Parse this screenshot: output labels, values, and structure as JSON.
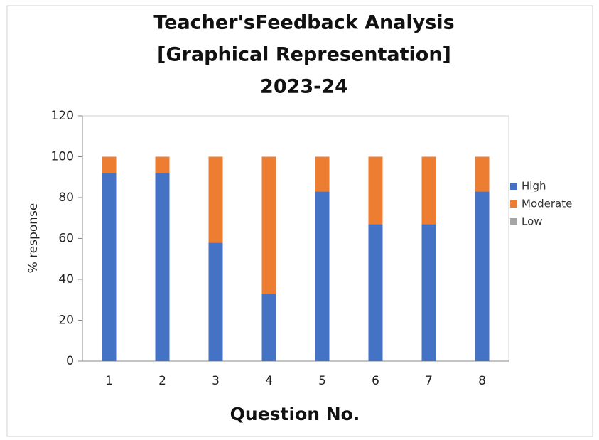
{
  "chart_data": {
    "type": "stacked_bar",
    "title": [
      "Teacher'sFeedback Analysis",
      "[Graphical Representation]",
      "2023-24"
    ],
    "x_label": "Question No.",
    "y_label": "% response",
    "categories": [
      "1",
      "2",
      "3",
      "4",
      "5",
      "6",
      "7",
      "8"
    ],
    "series": [
      {
        "name": "High",
        "color": "#4472c4",
        "values": [
          92,
          92,
          58,
          33,
          83,
          67,
          67,
          83
        ]
      },
      {
        "name": "Moderate",
        "color": "#ed7d31",
        "values": [
          8,
          8,
          42,
          67,
          17,
          33,
          33,
          17
        ]
      },
      {
        "name": "Low",
        "color": "#a5a5a5",
        "values": [
          0,
          0,
          0,
          0,
          0,
          0,
          0,
          0
        ]
      }
    ],
    "ylim": [
      0,
      120
    ],
    "yticks": [
      0,
      20,
      40,
      60,
      80,
      100,
      120
    ],
    "grid": false,
    "legend": "right"
  }
}
